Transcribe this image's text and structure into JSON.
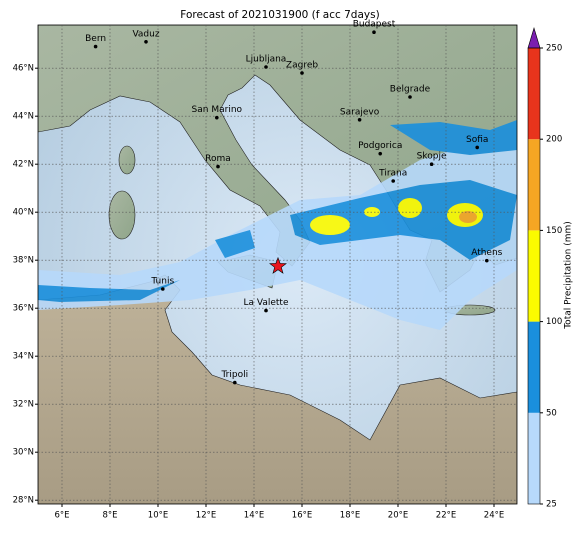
{
  "map": {
    "title": "Forecast of 2021031900 (f acc 7days)",
    "xticks": [
      {
        "value": 6,
        "label": "6°E"
      },
      {
        "value": 8,
        "label": "8°E"
      },
      {
        "value": 10,
        "label": "10°E"
      },
      {
        "value": 12,
        "label": "12°E"
      },
      {
        "value": 14,
        "label": "14°E"
      },
      {
        "value": 16,
        "label": "16°E"
      },
      {
        "value": 18,
        "label": "18°E"
      },
      {
        "value": 20,
        "label": "20°E"
      },
      {
        "value": 22,
        "label": "22°E"
      },
      {
        "value": 24,
        "label": "24°E"
      }
    ],
    "yticks": [
      {
        "value": 28,
        "label": "28°N"
      },
      {
        "value": 30,
        "label": "30°N"
      },
      {
        "value": 32,
        "label": "32°N"
      },
      {
        "value": 34,
        "label": "34°N"
      },
      {
        "value": 36,
        "label": "36°N"
      },
      {
        "value": 38,
        "label": "38°N"
      },
      {
        "value": 40,
        "label": "40°N"
      },
      {
        "value": 42,
        "label": "42°N"
      },
      {
        "value": 44,
        "label": "44°N"
      },
      {
        "value": 46,
        "label": "46°N"
      }
    ],
    "cities": [
      {
        "name": "Bern",
        "lon": 7.4,
        "lat": 46.9
      },
      {
        "name": "Vaduz",
        "lon": 9.5,
        "lat": 47.1
      },
      {
        "name": "Budapest",
        "lon": 19.0,
        "lat": 47.5
      },
      {
        "name": "Ljubljana",
        "lon": 14.5,
        "lat": 46.05
      },
      {
        "name": "Zagreb",
        "lon": 16.0,
        "lat": 45.8
      },
      {
        "name": "Belgrade",
        "lon": 20.5,
        "lat": 44.8
      },
      {
        "name": "San Marino",
        "lon": 12.45,
        "lat": 43.94
      },
      {
        "name": "Sarajevo",
        "lon": 18.4,
        "lat": 43.85
      },
      {
        "name": "Sofia",
        "lon": 23.3,
        "lat": 42.7
      },
      {
        "name": "Podgorica",
        "lon": 19.26,
        "lat": 42.44
      },
      {
        "name": "Skopje",
        "lon": 21.4,
        "lat": 42.0
      },
      {
        "name": "Roma",
        "lon": 12.5,
        "lat": 41.9
      },
      {
        "name": "Tirana",
        "lon": 19.8,
        "lat": 41.3
      },
      {
        "name": "Athens",
        "lon": 23.7,
        "lat": 37.98
      },
      {
        "name": "Tunis",
        "lon": 10.2,
        "lat": 36.8
      },
      {
        "name": "La Valette",
        "lon": 14.5,
        "lat": 35.9
      },
      {
        "name": "Tripoli",
        "lon": 13.2,
        "lat": 32.9
      }
    ],
    "star": {
      "lon": 15.0,
      "lat": 37.75,
      "color": "#e8141c"
    },
    "colorbar": {
      "label": "Total Precipitation (mm)",
      "ticks": [
        25,
        50,
        100,
        150,
        200,
        250
      ],
      "colors": [
        "#b7d9fb",
        "#1a8fdd",
        "#fbfb00",
        "#f5a623",
        "#e8341c"
      ],
      "extend_color": "#7a1fb0"
    }
  }
}
